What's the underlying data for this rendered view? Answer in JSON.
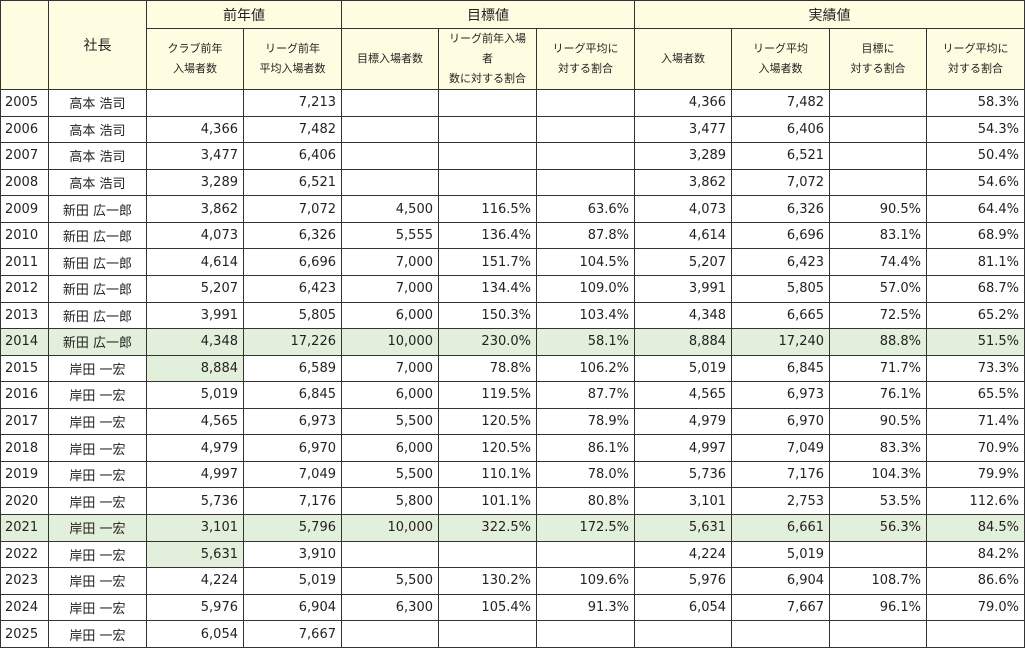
{
  "header": {
    "row1": [
      "社長",
      "前年値",
      "目標値",
      "実績値"
    ],
    "columns": [
      "クラブ前年\n入場者数",
      "リーグ前年\n平均入場者数",
      "目標入場者数",
      "リーグ前年入場者\n数に対する割合",
      "リーグ平均に\n対する割合",
      "入場者数",
      "リーグ平均\n入場者数",
      "目標に\n対する割合",
      "リーグ平均に\n対する割合"
    ]
  },
  "table": {
    "rows": [
      [
        "2005",
        "高本 浩司",
        null,
        "7,213",
        null,
        null,
        null,
        "4,366",
        "7,482",
        null,
        "58.3%"
      ],
      [
        "2006",
        "高本 浩司",
        "4,366",
        "7,482",
        null,
        null,
        null,
        "3,477",
        "6,406",
        null,
        "54.3%"
      ],
      [
        "2007",
        "高本 浩司",
        "3,477",
        "6,406",
        null,
        null,
        null,
        "3,289",
        "6,521",
        null,
        "50.4%"
      ],
      [
        "2008",
        "高本 浩司",
        "3,289",
        "6,521",
        null,
        null,
        null,
        "3,862",
        "7,072",
        null,
        "54.6%"
      ],
      [
        "2009",
        "新田 広一郎",
        "3,862",
        "7,072",
        "4,500",
        "116.5%",
        "63.6%",
        "4,073",
        "6,326",
        "90.5%",
        "64.4%"
      ],
      [
        "2010",
        "新田 広一郎",
        "4,073",
        "6,326",
        "5,555",
        "136.4%",
        "87.8%",
        "4,614",
        "6,696",
        "83.1%",
        "68.9%"
      ],
      [
        "2011",
        "新田 広一郎",
        "4,614",
        "6,696",
        "7,000",
        "151.7%",
        "104.5%",
        "5,207",
        "6,423",
        "74.4%",
        "81.1%"
      ],
      [
        "2012",
        "新田 広一郎",
        "5,207",
        "6,423",
        "7,000",
        "134.4%",
        "109.0%",
        "3,991",
        "5,805",
        "57.0%",
        "68.7%"
      ],
      [
        "2013",
        "新田 広一郎",
        "3,991",
        "5,805",
        "6,000",
        "150.3%",
        "103.4%",
        "4,348",
        "6,665",
        "72.5%",
        "65.2%"
      ],
      [
        "2014",
        "新田 広一郎",
        "4,348",
        "17,226",
        "10,000",
        "230.0%",
        "58.1%",
        "8,884",
        "17,240",
        "88.8%",
        "51.5%"
      ],
      [
        "2015",
        "岸田 一宏",
        "8,884",
        "6,589",
        "7,000",
        "78.8%",
        "106.2%",
        "5,019",
        "6,845",
        "71.7%",
        "73.3%"
      ],
      [
        "2016",
        "岸田 一宏",
        "5,019",
        "6,845",
        "6,000",
        "119.5%",
        "87.7%",
        "4,565",
        "6,973",
        "76.1%",
        "65.5%"
      ],
      [
        "2017",
        "岸田 一宏",
        "4,565",
        "6,973",
        "5,500",
        "120.5%",
        "78.9%",
        "4,979",
        "6,970",
        "90.5%",
        "71.4%"
      ],
      [
        "2018",
        "岸田 一宏",
        "4,979",
        "6,970",
        "6,000",
        "120.5%",
        "86.1%",
        "4,997",
        "7,049",
        "83.3%",
        "70.9%"
      ],
      [
        "2019",
        "岸田 一宏",
        "4,997",
        "7,049",
        "5,500",
        "110.1%",
        "78.0%",
        "5,736",
        "7,176",
        "104.3%",
        "79.9%"
      ],
      [
        "2020",
        "岸田 一宏",
        "5,736",
        "7,176",
        "5,800",
        "101.1%",
        "80.8%",
        "3,101",
        "2,753",
        "53.5%",
        "112.6%"
      ],
      [
        "2021",
        "岸田 一宏",
        "3,101",
        "5,796",
        "10,000",
        "322.5%",
        "172.5%",
        "5,631",
        "6,661",
        "56.3%",
        "84.5%"
      ],
      [
        "2022",
        "岸田 一宏",
        "5,631",
        "3,910",
        null,
        null,
        null,
        "4,224",
        "5,019",
        null,
        "84.2%"
      ],
      [
        "2023",
        "岸田 一宏",
        "4,224",
        "5,019",
        "5,500",
        "130.2%",
        "109.6%",
        "5,976",
        "6,904",
        "108.7%",
        "86.6%"
      ],
      [
        "2024",
        "岸田 一宏",
        "5,976",
        "6,904",
        "6,300",
        "105.4%",
        "91.3%",
        "6,054",
        "7,667",
        "96.1%",
        "79.0%"
      ],
      [
        "2025",
        "岸田 一宏",
        "6,054",
        "7,667",
        null,
        null,
        null,
        null,
        null,
        null,
        null
      ]
    ]
  }
}
